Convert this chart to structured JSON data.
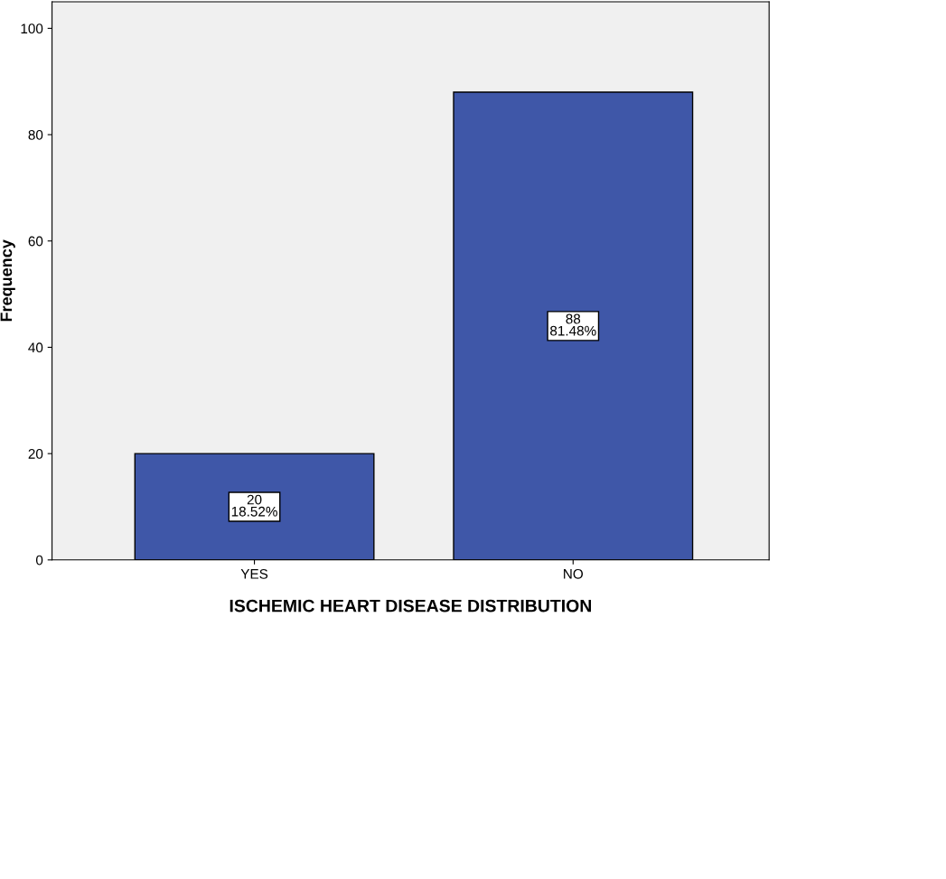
{
  "chart_data": {
    "type": "bar",
    "xlabel": "ISCHEMIC HEART DISEASE DISTRIBUTION",
    "ylabel": "Frequency",
    "categories": [
      "YES",
      "NO"
    ],
    "values": [
      20,
      88
    ],
    "color": "#3f57a8",
    "value_labels": [
      "20\n18.52%",
      "88\n81.48%"
    ],
    "ylim": [
      0,
      105
    ],
    "yticks": [
      0,
      20,
      40,
      60,
      80,
      100
    ],
    "grid": false,
    "legend": false
  }
}
